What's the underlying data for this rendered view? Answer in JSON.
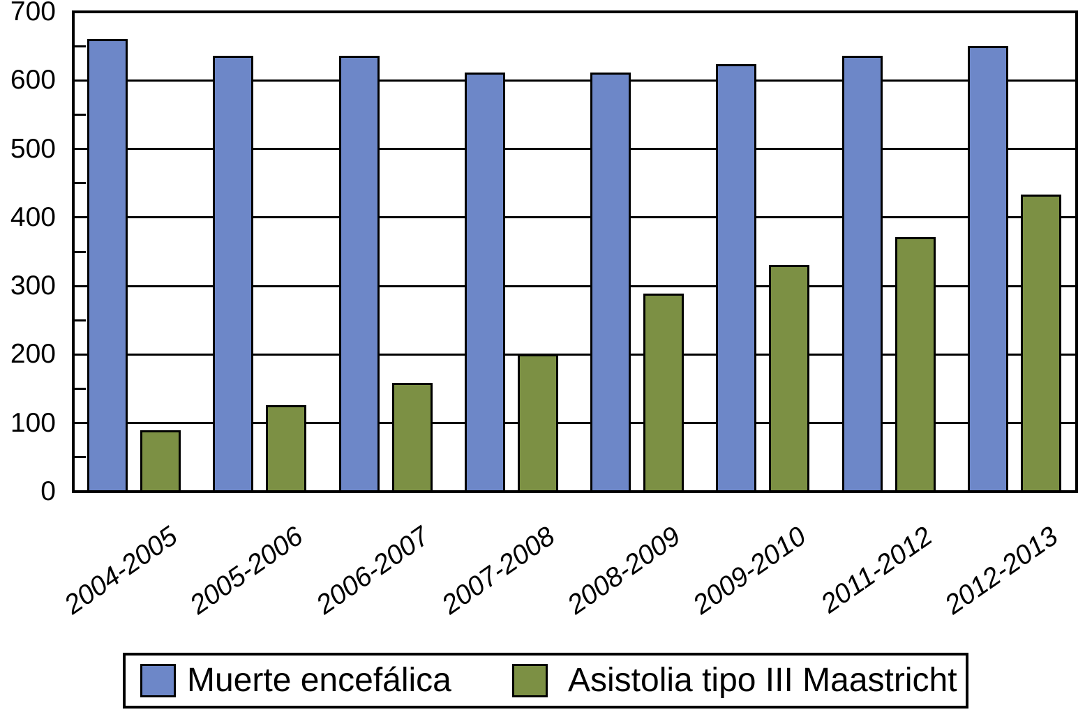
{
  "chart_data": {
    "type": "bar",
    "title": "",
    "xlabel": "",
    "ylabel": "",
    "categories": [
      "2004-2005",
      "2005-2006",
      "2006-2007",
      "2007-2008",
      "2008-2009",
      "2009-2010",
      "2011-2012",
      "2012-2013"
    ],
    "series": [
      {
        "name": "Muerte encefálica",
        "color": "#6d87c8",
        "values": [
          660,
          636,
          636,
          611,
          611,
          624,
          636,
          650
        ]
      },
      {
        "name": "Asistolia tipo III Maastricht",
        "color": "#7c9044",
        "values": [
          90,
          126,
          159,
          200,
          289,
          331,
          371,
          433
        ]
      }
    ],
    "ylim": [
      0,
      700
    ],
    "y_tick_step": 100,
    "y_minor_tick_step": 50,
    "y_tick_labels": [
      "0",
      "100",
      "200",
      "300",
      "400",
      "500",
      "600",
      "700"
    ],
    "grid": "horizontal-major",
    "gridline_color": "#000000",
    "bar_border_color": "#000000",
    "axis_frame_color": "#000000",
    "legend_position": "bottom",
    "x_label_rotation_deg": -35
  }
}
